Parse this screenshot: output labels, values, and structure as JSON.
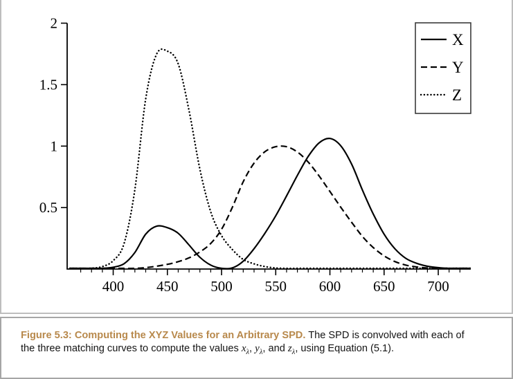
{
  "figure": {
    "panel_border_color": "#bdbdbd",
    "caption_border_color": "#a6a6a6",
    "background": "#ffffff"
  },
  "chart_data": {
    "type": "line",
    "title": "",
    "xlabel": "",
    "ylabel": "",
    "grid": false,
    "axis_color": "#000000",
    "curve_color": "#000000",
    "xlim": [
      357.5,
      730
    ],
    "ylim": [
      0,
      2
    ],
    "x_major_ticks": [
      400,
      450,
      500,
      550,
      600,
      650,
      700
    ],
    "x_minor_step": 10,
    "x_minor_range": [
      370,
      720
    ],
    "y_ticks": [
      {
        "value": 0.5,
        "label": "0.5"
      },
      {
        "value": 1,
        "label": "1"
      },
      {
        "value": 1.5,
        "label": "1.5"
      },
      {
        "value": 2,
        "label": "2"
      }
    ],
    "legend": {
      "position": "top-right",
      "entries": [
        {
          "label": "X",
          "style": "solid"
        },
        {
          "label": "Y",
          "style": "dashed"
        },
        {
          "label": "Z",
          "style": "dotted"
        }
      ]
    },
    "x": [
      360,
      370,
      380,
      390,
      400,
      410,
      420,
      430,
      440,
      450,
      460,
      470,
      480,
      490,
      500,
      510,
      520,
      530,
      540,
      550,
      560,
      570,
      580,
      590,
      600,
      610,
      620,
      630,
      640,
      650,
      660,
      670,
      680,
      690,
      700,
      710,
      720,
      730
    ],
    "series": [
      {
        "name": "X",
        "style": "solid",
        "values": [
          0.0001,
          0.0004,
          0.0014,
          0.0042,
          0.0143,
          0.0435,
          0.1344,
          0.2839,
          0.3483,
          0.3362,
          0.2908,
          0.1954,
          0.0956,
          0.032,
          0.0049,
          0.0093,
          0.0633,
          0.1655,
          0.2904,
          0.4334,
          0.5945,
          0.7621,
          0.9163,
          1.0263,
          1.0622,
          1.0026,
          0.8544,
          0.6424,
          0.4479,
          0.2835,
          0.1649,
          0.0874,
          0.0468,
          0.0227,
          0.0114,
          0.0058,
          0.0029,
          0.0014
        ]
      },
      {
        "name": "Y",
        "style": "dashed",
        "values": [
          0.0,
          0.0,
          0.0,
          0.0001,
          0.0004,
          0.0012,
          0.004,
          0.0116,
          0.023,
          0.038,
          0.06,
          0.091,
          0.139,
          0.208,
          0.323,
          0.503,
          0.71,
          0.862,
          0.954,
          0.995,
          0.995,
          0.952,
          0.87,
          0.757,
          0.631,
          0.503,
          0.381,
          0.265,
          0.175,
          0.107,
          0.061,
          0.032,
          0.017,
          0.0082,
          0.0041,
          0.0021,
          0.001,
          0.0005
        ]
      },
      {
        "name": "Z",
        "style": "dotted",
        "values": [
          0.0006,
          0.0019,
          0.0065,
          0.0201,
          0.0679,
          0.2074,
          0.6456,
          1.3856,
          1.7471,
          1.7721,
          1.6692,
          1.2876,
          0.813,
          0.4652,
          0.272,
          0.1582,
          0.0782,
          0.0422,
          0.0203,
          0.0087,
          0.0039,
          0.0021,
          0.0017,
          0.0011,
          0.0008,
          0.0003,
          0.0002,
          0.0,
          0.0,
          0.0,
          0.0,
          0.0,
          0.0,
          0.0,
          0.0,
          0.0,
          0.0,
          0.0
        ]
      }
    ]
  },
  "caption": {
    "heading_color": "#b8894c",
    "lines": [
      [
        {
          "t": "Figure 5.3: Computing the XYZ Values for an Arbitrary SPD.",
          "s": "head"
        },
        {
          "t": " The SPD is convolved with each of",
          "s": "txt"
        }
      ],
      [
        {
          "t": "the three matching curves to compute the values ",
          "s": "txt"
        },
        {
          "t": "x",
          "s": "var"
        },
        {
          "t": "λ",
          "s": "sub"
        },
        {
          "t": ", ",
          "s": "txt"
        },
        {
          "t": "y",
          "s": "var"
        },
        {
          "t": "λ",
          "s": "sub"
        },
        {
          "t": ", and ",
          "s": "txt"
        },
        {
          "t": "z",
          "s": "var"
        },
        {
          "t": "λ",
          "s": "sub"
        },
        {
          "t": ", using Equation (5.1).",
          "s": "txt"
        }
      ]
    ]
  }
}
